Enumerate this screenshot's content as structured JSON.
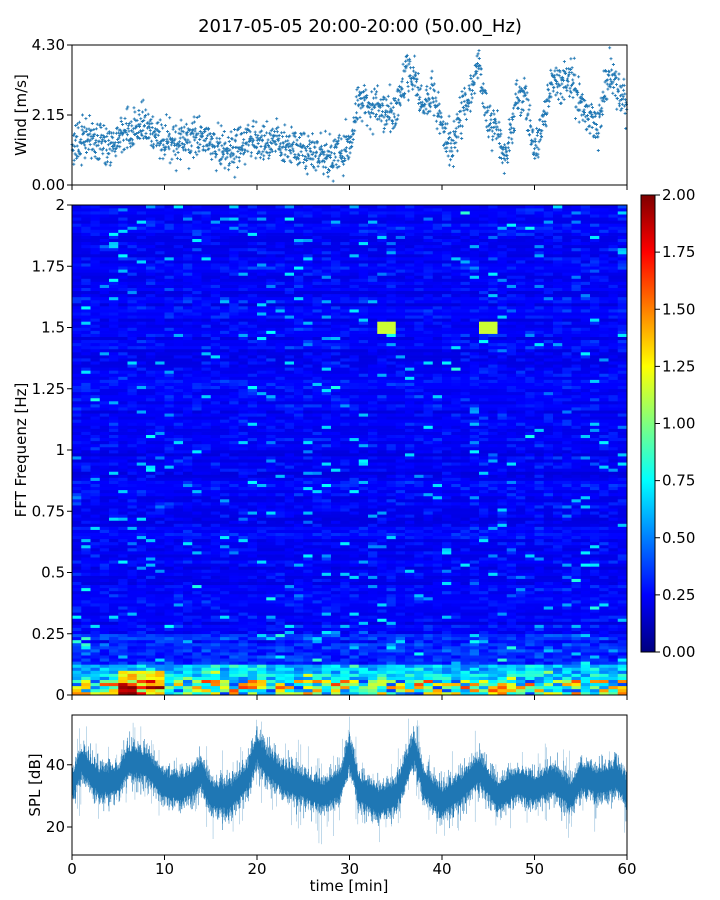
{
  "title": "2017-05-05 20:00-20:00 (50.00_Hz)",
  "chart_data": [
    {
      "type": "scatter",
      "panel": "wind",
      "ylabel": "Wind [m/s]",
      "ylim": [
        0,
        4.3
      ],
      "yticks": [
        "0.00",
        "2.15",
        "4.30"
      ],
      "xlim": [
        0,
        60
      ],
      "marker_color": "#1f77b4",
      "trend": {
        "t": [
          0,
          2,
          4,
          6,
          8,
          10,
          12,
          14,
          16,
          18,
          20,
          22,
          24,
          26,
          28,
          30,
          31,
          33,
          35,
          36,
          37,
          38,
          39,
          40,
          41,
          42,
          43,
          44,
          45,
          46,
          47,
          48,
          49,
          50,
          51,
          52,
          53,
          54,
          55,
          56,
          57,
          58,
          59,
          60
        ],
        "wind": [
          1.3,
          1.4,
          1.2,
          1.6,
          1.9,
          1.2,
          1.4,
          1.6,
          1.0,
          1.2,
          1.4,
          1.3,
          1.2,
          1.0,
          0.8,
          1.2,
          2.5,
          2.4,
          2.2,
          3.3,
          3.5,
          2.2,
          3.0,
          1.8,
          1.0,
          2.2,
          2.8,
          3.6,
          2.0,
          1.6,
          0.8,
          2.7,
          2.8,
          1.0,
          2.0,
          3.4,
          3.0,
          3.2,
          2.4,
          2.0,
          1.8,
          3.5,
          2.8,
          2.6
        ]
      }
    },
    {
      "type": "heatmap",
      "panel": "spectrogram",
      "ylabel": "FFT Frequenz [Hz]",
      "ylim": [
        0,
        2
      ],
      "yticks": [
        "0",
        "0.25",
        "0.5",
        "0.75",
        "1",
        "1.25",
        "1.5",
        "1.75",
        "2"
      ],
      "xlim": [
        0,
        60
      ],
      "colormap": "jet",
      "colorbar": {
        "range": [
          0,
          2
        ],
        "ticks": [
          "0.00",
          "0.25",
          "0.50",
          "0.75",
          "1.00",
          "1.25",
          "1.50",
          "1.75",
          "2.00"
        ]
      }
    },
    {
      "type": "line",
      "panel": "spl",
      "ylabel": "SPL [dB]",
      "ylim": [
        11,
        56
      ],
      "yticks": [
        "20",
        "40"
      ],
      "xlim": [
        0,
        60
      ],
      "xlabel": "time [min]",
      "xticks": [
        "0",
        "10",
        "20",
        "30",
        "40",
        "50",
        "60"
      ],
      "line_color": "#1f77b4",
      "trend": {
        "t": [
          0,
          1,
          3,
          5,
          6,
          8,
          10,
          12,
          14,
          15,
          17,
          19,
          20,
          21,
          23,
          25,
          27,
          29,
          30,
          31,
          33,
          35,
          37,
          38,
          40,
          42,
          44,
          46,
          48,
          50,
          52,
          54,
          55,
          57,
          59,
          60
        ],
        "spl": [
          33,
          41,
          34,
          35,
          41,
          40,
          33,
          32,
          37,
          30,
          29,
          36,
          45,
          40,
          35,
          33,
          30,
          34,
          44,
          32,
          28,
          30,
          45,
          34,
          28,
          32,
          38,
          30,
          34,
          32,
          35,
          30,
          36,
          34,
          36,
          31
        ]
      }
    }
  ]
}
